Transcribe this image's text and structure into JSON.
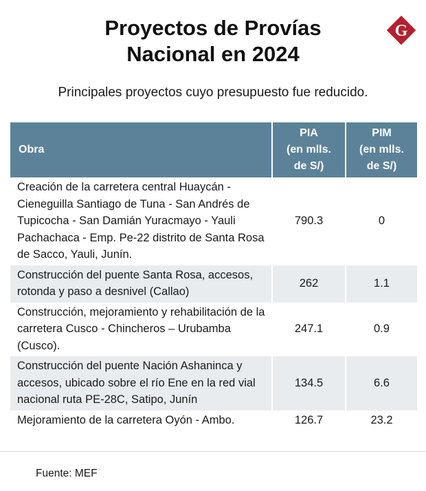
{
  "header": {
    "title_line1": "Proyectos de Provías",
    "title_line2": "Nacional en 2024",
    "subtitle": "Principales proyectos cuyo presupuesto fue reducido.",
    "logo_letter": "G",
    "logo_color": "#b5202e"
  },
  "chart_data": {
    "type": "table",
    "columns": [
      {
        "key": "obra",
        "lines": [
          "Obra"
        ]
      },
      {
        "key": "pia",
        "lines": [
          "PIA",
          "(en mlls.",
          "de S/)"
        ]
      },
      {
        "key": "pim",
        "lines": [
          "PIM",
          "(en mlls.",
          "de S/)"
        ]
      }
    ],
    "rows": [
      {
        "obra": "Creación de la carretera central Huaycán - Cieneguilla Santiago de Tuna - San Andrés de Tupicocha - San Damián Yuracmayo - Yauli Pachachaca - Emp. Pe-22 distrito de Santa Rosa de Sacco, Yauli, Junín.",
        "pia": "790.3",
        "pim": "0"
      },
      {
        "obra": "Construcción del puente Santa Rosa, accesos, rotonda y paso a desnivel (Callao)",
        "pia": "262",
        "pim": "1.1"
      },
      {
        "obra": "Construcción, mejoramiento y rehabilitación de la carretera Cusco - Chincheros – Urubamba (Cusco).",
        "pia": "247.1",
        "pim": "0.9"
      },
      {
        "obra": "Construcción del puente Nación Ashaninca y accesos, ubicado sobre el río Ene en la red vial nacional ruta PE-28C, Satipo, Junín",
        "pia": "134.5",
        "pim": "6.6"
      },
      {
        "obra": "Mejoramiento de la carretera Oyón - Ambo.",
        "pia": "126.7",
        "pim": "23.2"
      }
    ]
  },
  "colors": {
    "header_bg": "#5c8299",
    "header_text": "#ffffff",
    "shaded_row": "#e9ecef"
  },
  "footer": {
    "source": "Fuente: MEF"
  }
}
